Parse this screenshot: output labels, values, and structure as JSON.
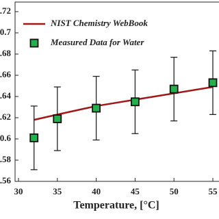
{
  "chart_data": {
    "type": "line",
    "x_label": "Temperature, [°C]",
    "xlim": [
      30,
      55
    ],
    "xticks": [
      30,
      35,
      40,
      45,
      50,
      55
    ],
    "ylim": [
      0.56,
      0.72
    ],
    "yticks": [
      0.56,
      0.58,
      0.6,
      0.62,
      0.64,
      0.66,
      0.68,
      0.7,
      0.72
    ],
    "legend": "upper left",
    "series": [
      {
        "name": "NIST Chemistry WebBook",
        "type": "line",
        "color": "#a01818",
        "x": [
          32,
          35,
          40,
          45,
          50,
          55
        ],
        "values": [
          0.618,
          0.623,
          0.631,
          0.637,
          0.643,
          0.649
        ]
      },
      {
        "name": "Measured Data for Water",
        "type": "scatter",
        "color": "#22b14c",
        "x": [
          32,
          35,
          40,
          45,
          50,
          55
        ],
        "values": [
          0.601,
          0.619,
          0.629,
          0.635,
          0.647,
          0.653
        ],
        "errors": [
          0.03,
          0.03,
          0.03,
          0.03,
          0.03,
          0.03
        ]
      }
    ]
  }
}
